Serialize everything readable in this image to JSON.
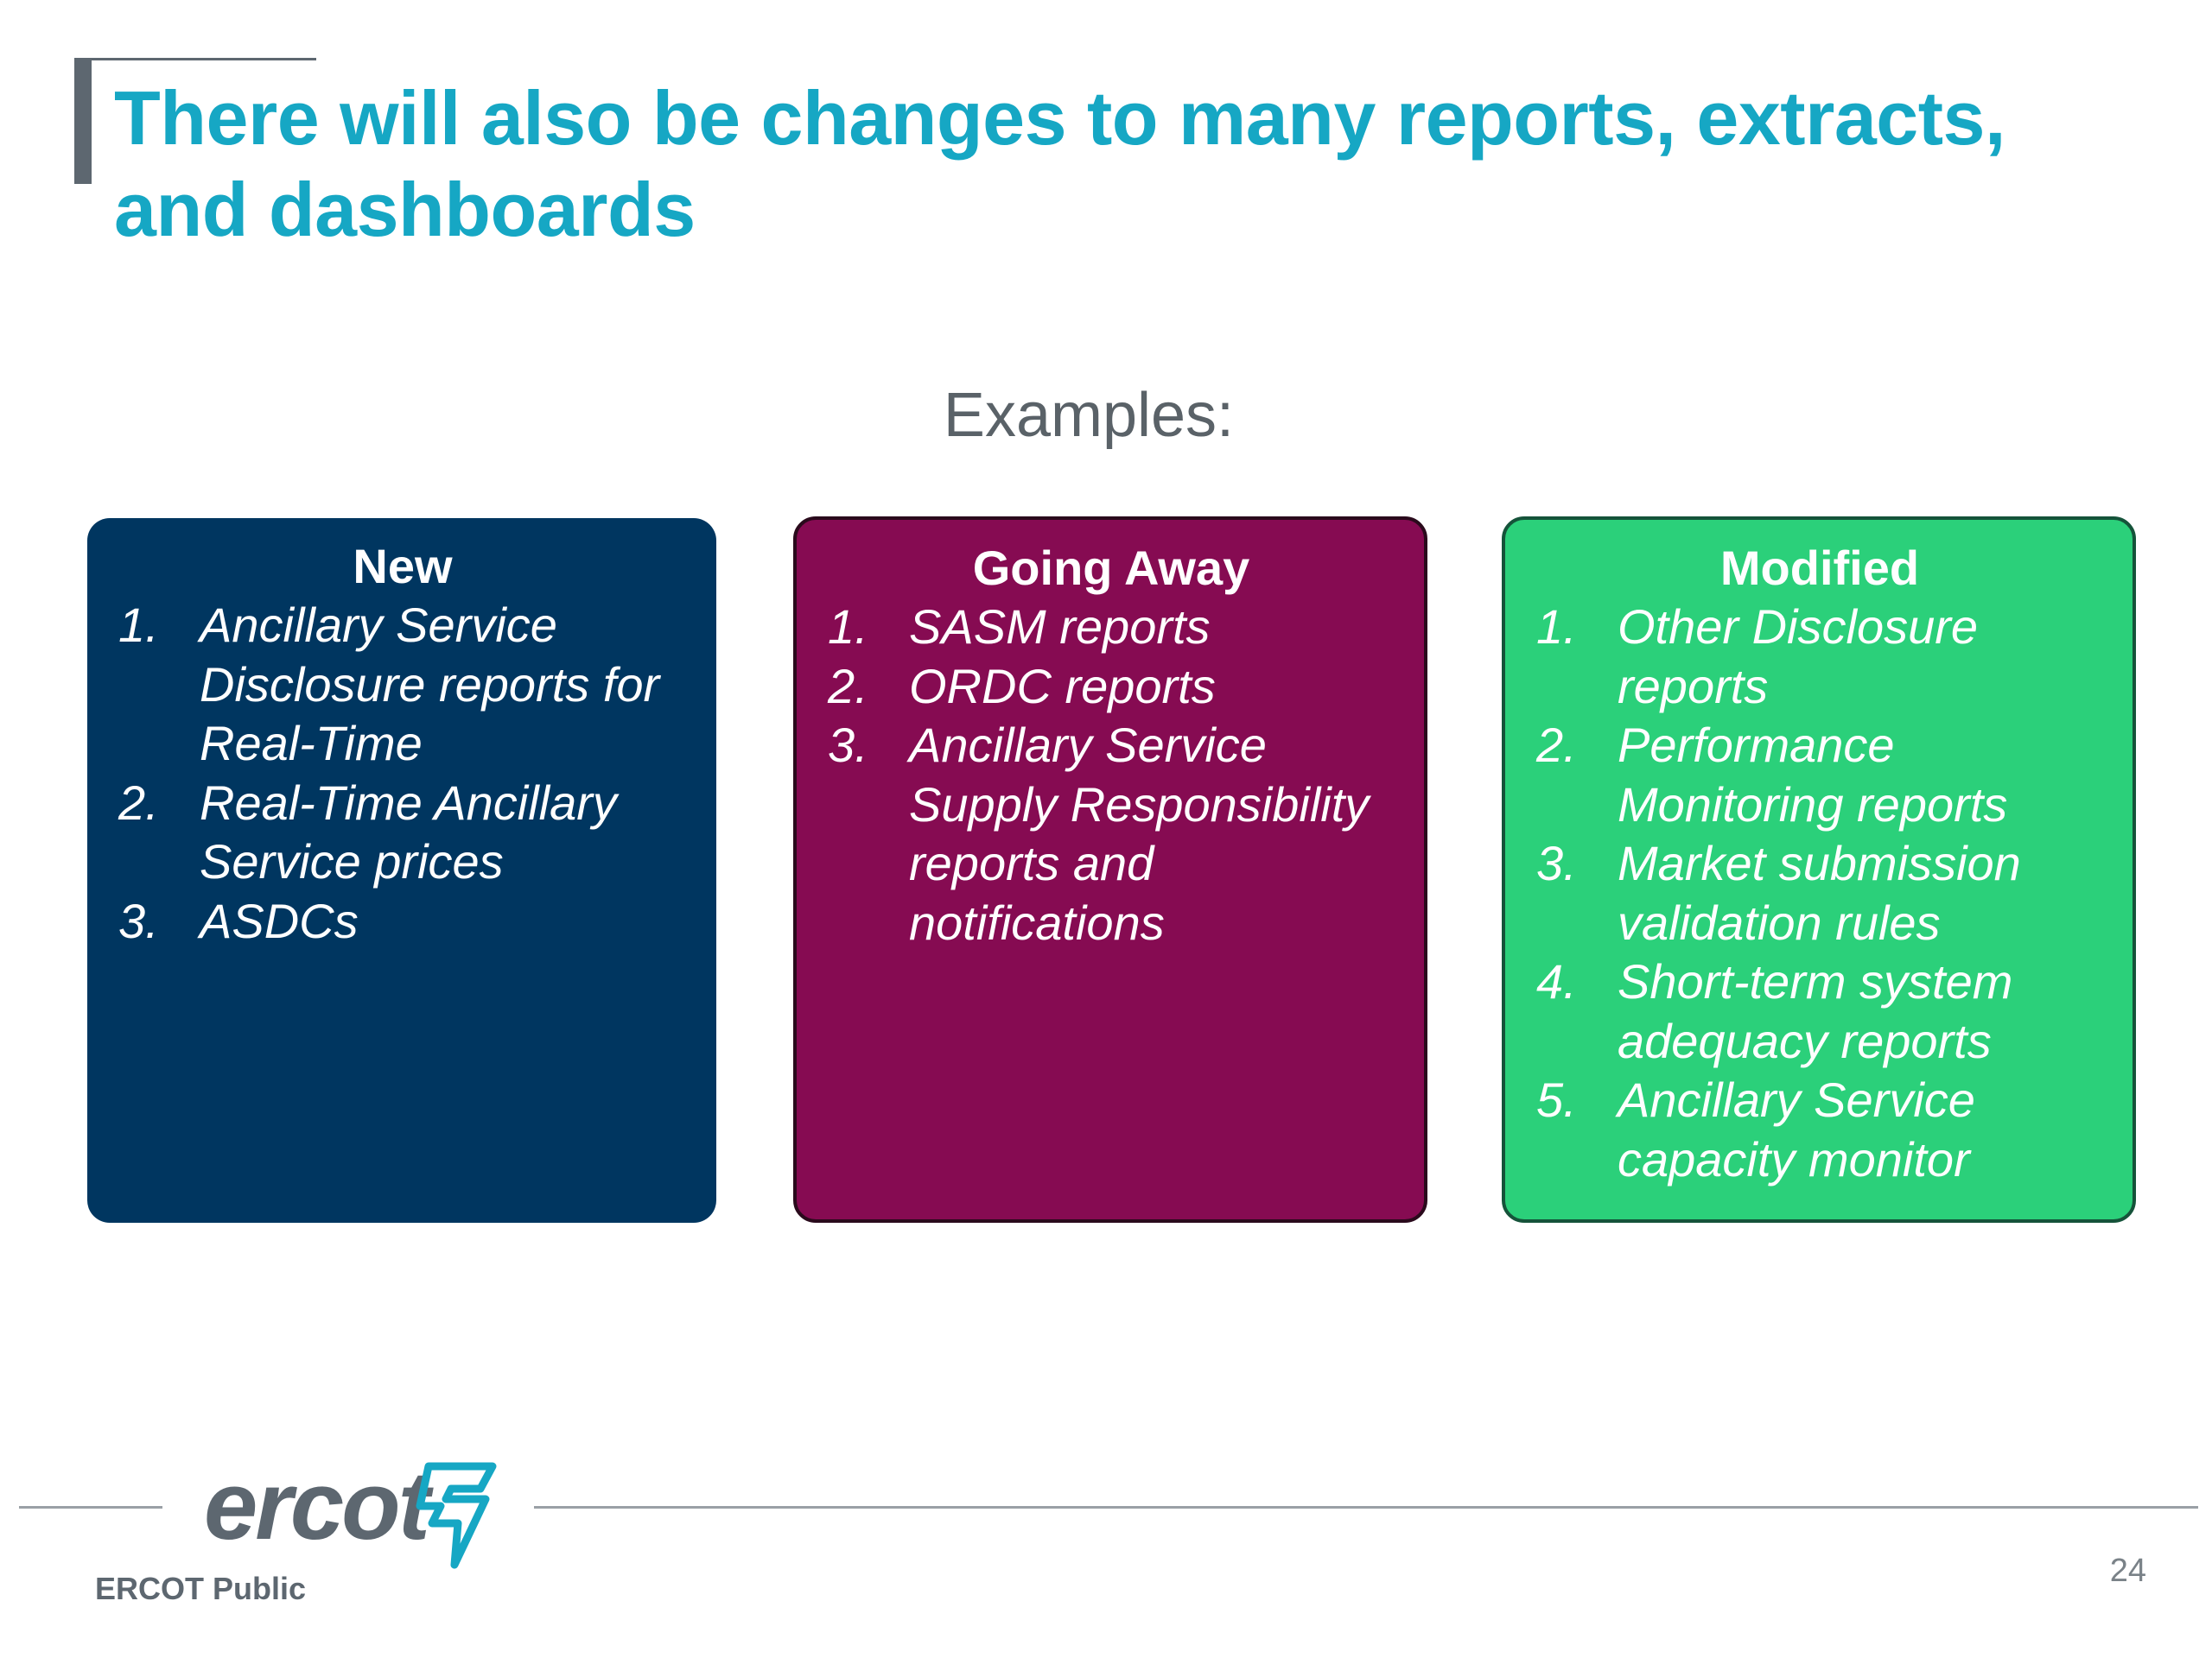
{
  "slide": {
    "title": "There will also be changes to many reports, extracts, and dashboards",
    "examples_label": "Examples:"
  },
  "cards": [
    {
      "heading": "New",
      "color": "#003660",
      "items": [
        {
          "num": "1.",
          "text": "Ancillary Service Disclosure reports for Real-Time"
        },
        {
          "num": "2.",
          "text": "Real-Time Ancillary Service prices"
        },
        {
          "num": "3.",
          "text": "ASDCs"
        }
      ]
    },
    {
      "heading": "Going Away",
      "color": "#860b52",
      "items": [
        {
          "num": "1.",
          "text": "SASM reports"
        },
        {
          "num": "2.",
          "text": "ORDC reports"
        },
        {
          "num": "3.",
          "text": "Ancillary Service Supply Responsibility reports and notifications"
        }
      ]
    },
    {
      "heading": "Modified",
      "color": "#2bd07a",
      "items": [
        {
          "num": "1.",
          "text": "Other Disclosure reports"
        },
        {
          "num": "2.",
          "text": "Performance Monitoring reports"
        },
        {
          "num": "3.",
          "text": "Market submission validation rules"
        },
        {
          "num": "4.",
          "text": "Short-term system adequacy reports"
        },
        {
          "num": "5.",
          "text": "Ancillary Service capacity monitor"
        }
      ]
    }
  ],
  "footer": {
    "logo_text": "ercot",
    "logo_mark_icon": "ercot-logo-mark-icon",
    "classification": "ERCOT Public",
    "page_number": "24"
  }
}
